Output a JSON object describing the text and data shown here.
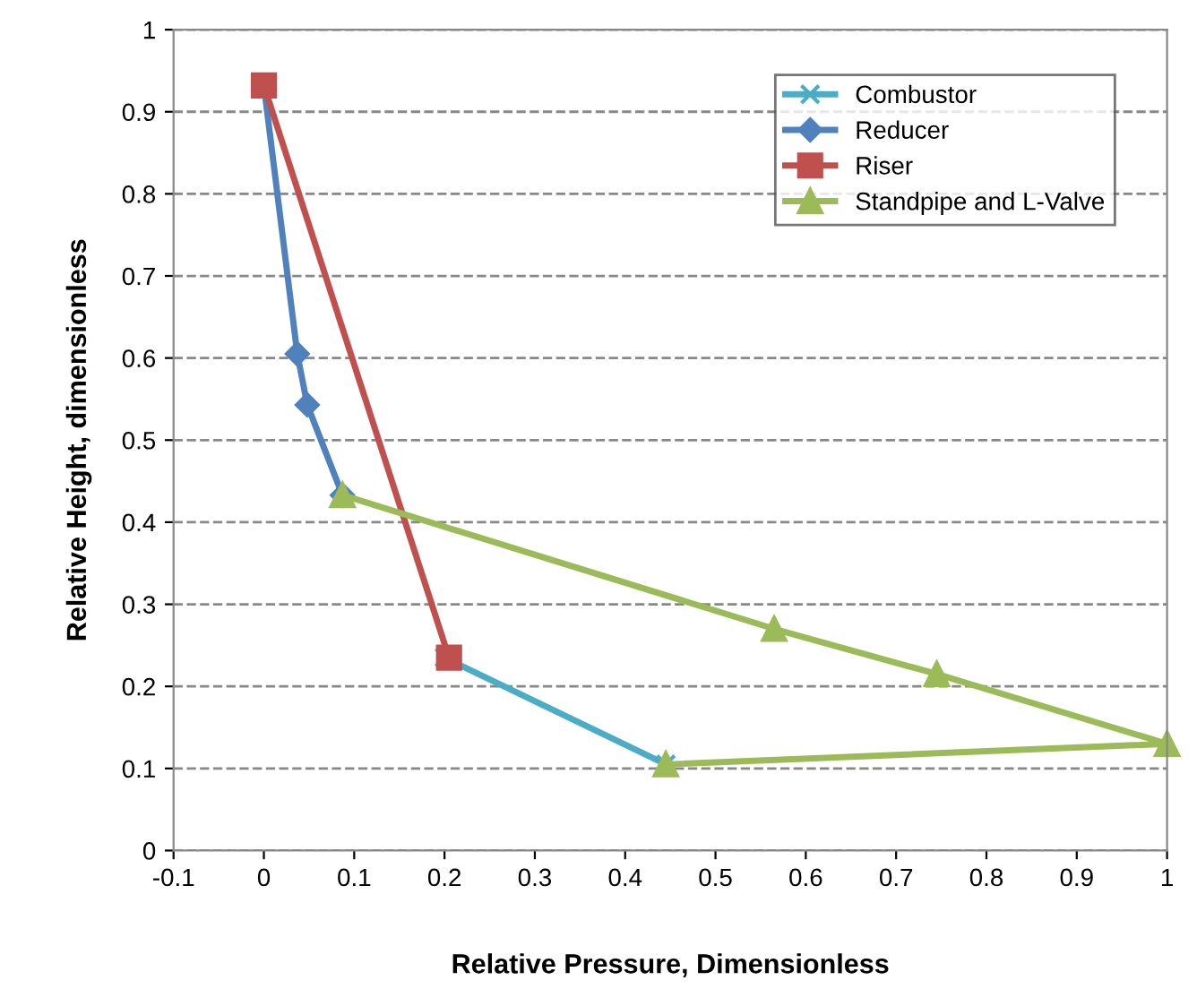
{
  "chart_data": {
    "type": "line",
    "xlabel": "Relative Pressure, Dimensionless",
    "ylabel": "Relative Height, dimensionless",
    "xlim": [
      -0.1,
      1
    ],
    "xticks": [
      -0.1,
      0,
      0.1,
      0.2,
      0.3,
      0.4,
      0.5,
      0.6,
      0.7,
      0.8,
      0.9,
      1
    ],
    "ylim": [
      0,
      1
    ],
    "yticks": [
      0,
      0.1,
      0.2,
      0.3,
      0.4,
      0.5,
      0.6,
      0.7,
      0.8,
      0.9,
      1
    ],
    "grid": "y",
    "legend": "top right",
    "line_style": "solid",
    "series": [
      {
        "name": "Combustor",
        "color": "#4bacc6",
        "marker": "cross",
        "x": [
          0.2,
          0.445
        ],
        "values": [
          0.235,
          0.105
        ]
      },
      {
        "name": "Reducer",
        "color": "#4f81bd",
        "marker": "diamond",
        "x": [
          0,
          0.037,
          0.048,
          0.087
        ],
        "values": [
          0.932,
          0.605,
          0.543,
          0.433
        ]
      },
      {
        "name": "Riser",
        "color": "#c0504d",
        "marker": "square",
        "x": [
          0,
          0.205
        ],
        "values": [
          0.932,
          0.235
        ]
      },
      {
        "name": "Standpipe and L-Valve",
        "color": "#9bbb59",
        "marker": "triangle",
        "x": [
          0.087,
          0.565,
          0.745,
          1.0,
          0.445
        ],
        "values": [
          0.433,
          0.27,
          0.215,
          0.13,
          0.105
        ]
      }
    ]
  }
}
